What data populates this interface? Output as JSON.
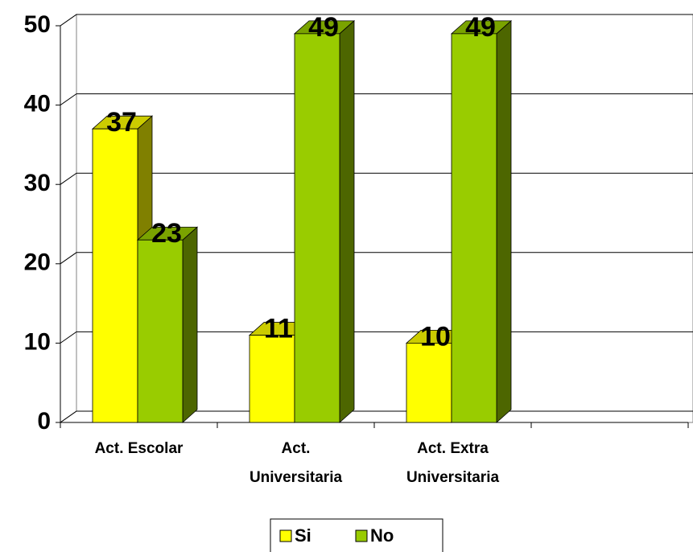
{
  "chart_data": {
    "type": "bar",
    "three_d": true,
    "categories": [
      "Act. Escolar",
      "Act.\nUniversitaria",
      "Act. Extra\nUniversitaria",
      null
    ],
    "series": [
      {
        "name": "Si",
        "color": "#ffff00",
        "values": [
          37,
          11,
          10,
          null
        ]
      },
      {
        "name": "No",
        "color": "#99cc00",
        "values": [
          23,
          49,
          49,
          null
        ]
      }
    ],
    "ylim": [
      0,
      50
    ],
    "yticks": [
      0,
      10,
      20,
      30,
      40,
      50
    ],
    "grid": true,
    "legend": "bottom"
  }
}
